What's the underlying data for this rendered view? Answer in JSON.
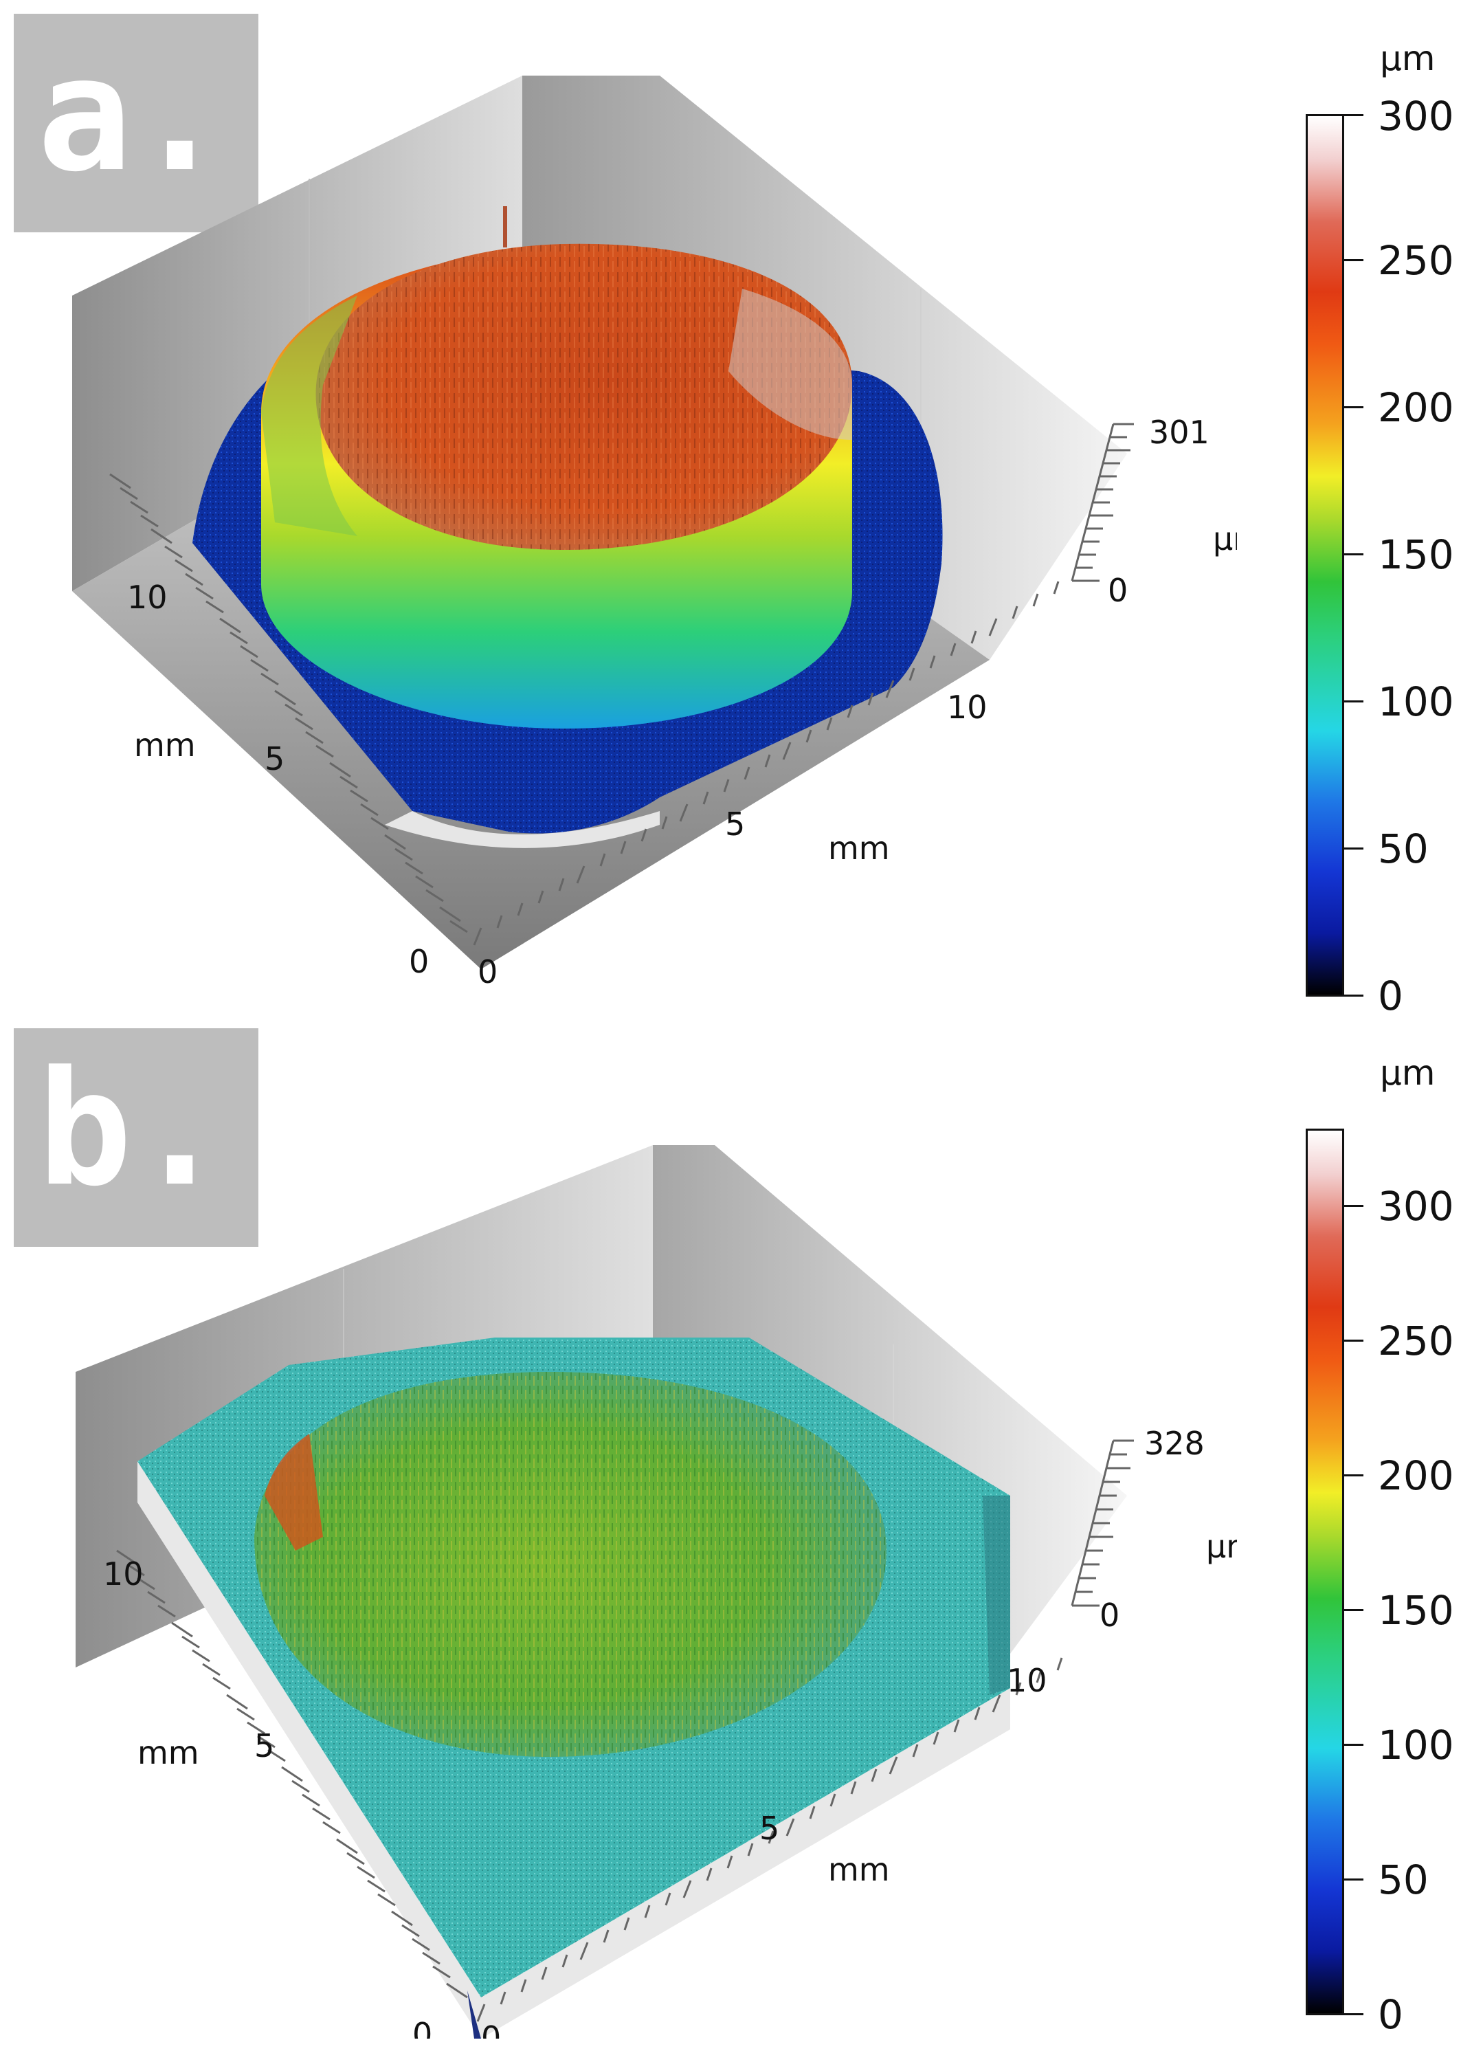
{
  "panels": [
    {
      "label": "a.",
      "axes": {
        "left_unit": "mm",
        "left_ticks": [
          "0",
          "5",
          "10"
        ],
        "bottom_unit": "mm",
        "bottom_ticks": [
          "0",
          "5",
          "10"
        ],
        "z_unit": "µm",
        "z_ticks": [
          "0",
          "301"
        ]
      },
      "colorbar": {
        "unit": "µm",
        "ticks": [
          "0",
          "50",
          "100",
          "150",
          "200",
          "250",
          "300"
        ],
        "range": [
          0,
          300
        ]
      }
    },
    {
      "label": "b.",
      "axes": {
        "left_unit": "mm",
        "left_ticks": [
          "0",
          "5",
          "10"
        ],
        "bottom_unit": "mm",
        "bottom_ticks": [
          "0",
          "5",
          "10"
        ],
        "z_unit": "µm",
        "z_ticks": [
          "0",
          "328"
        ]
      },
      "colorbar": {
        "unit": "µm",
        "ticks": [
          "0",
          "50",
          "100",
          "150",
          "200",
          "250",
          "300"
        ],
        "range": [
          0,
          328
        ]
      }
    }
  ]
}
